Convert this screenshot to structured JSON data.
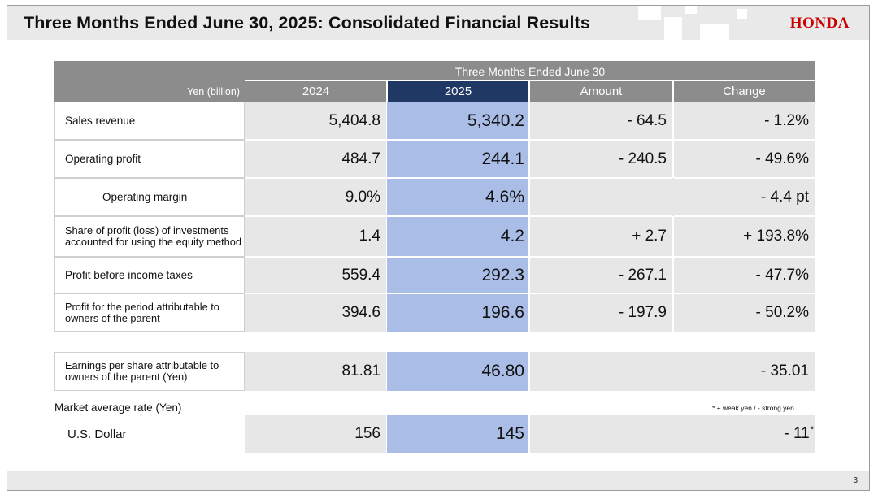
{
  "header": {
    "title": "Three Months Ended June 30, 2025: Consolidated Financial Results",
    "logo_text": "HONDA"
  },
  "table": {
    "super_header": "Three Months Ended June 30",
    "unit_label": "Yen (billion)",
    "columns": [
      "2024",
      "2025",
      "Amount",
      "Change"
    ],
    "rows": [
      {
        "label": "Sales revenue",
        "y2024": "5,404.8",
        "y2025": "5,340.2",
        "amount": "- 64.5",
        "change": "- 1.2%"
      },
      {
        "label": "Operating profit",
        "y2024": "484.7",
        "y2025": "244.1",
        "amount": "- 240.5",
        "change": "- 49.6%"
      },
      {
        "label": "Operating margin",
        "y2024": "9.0%",
        "y2025": "4.6%",
        "amount": "",
        "change": "- 4.4 pt"
      },
      {
        "label": "Share of profit (loss) of investments accounted for using the equity method",
        "y2024": "1.4",
        "y2025": "4.2",
        "amount": "+ 2.7",
        "change": "+ 193.8%"
      },
      {
        "label": "Profit before income taxes",
        "y2024": "559.4",
        "y2025": "292.3",
        "amount": "- 267.1",
        "change": "- 47.7%"
      },
      {
        "label": "Profit for the period attributable to owners of the parent",
        "y2024": "394.6",
        "y2025": "196.6",
        "amount": "- 197.9",
        "change": "- 50.2%"
      }
    ],
    "eps_row": {
      "label": "Earnings per share attributable to owners of the parent (Yen)",
      "y2024": "81.81",
      "y2025": "46.80",
      "change": "- 35.01"
    }
  },
  "market": {
    "section_label": "Market average rate (Yen)",
    "note": "* + weak yen / - strong yen",
    "usd_row": {
      "label": "U.S. Dollar",
      "y2024": "156",
      "y2025": "145",
      "change": "- 11",
      "change_mark": "*"
    }
  },
  "footer": {
    "page_number": "3"
  },
  "colors": {
    "header_gray": "#8c8c8c",
    "header_navy": "#1f3864",
    "highlight": "#a9bde6",
    "value_bg": "#e7e7e7",
    "logo_red": "#cc0000"
  }
}
